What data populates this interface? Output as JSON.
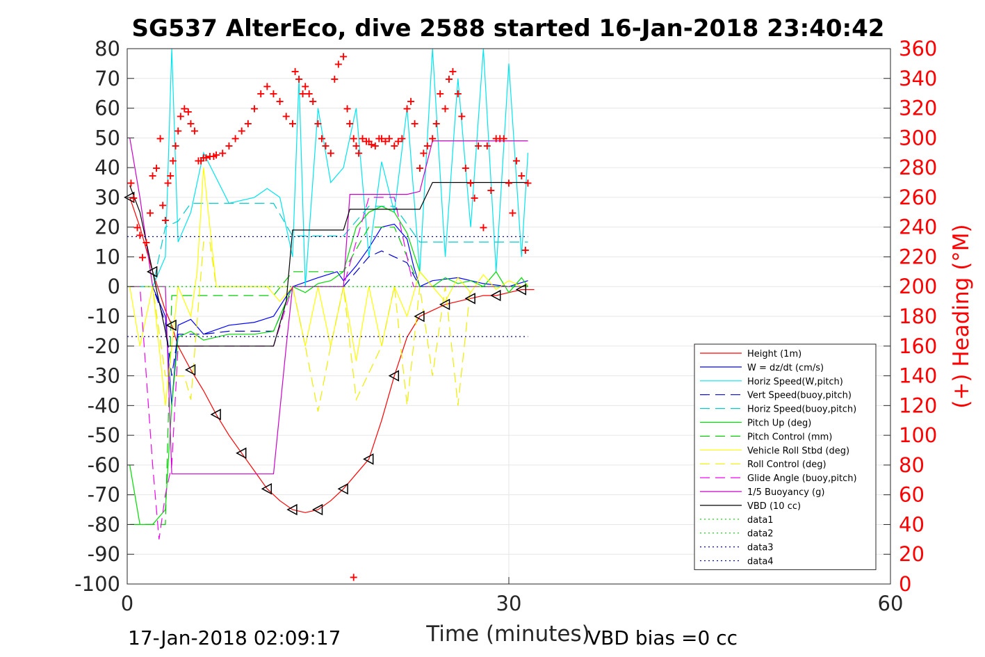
{
  "chart_data": {
    "type": "line",
    "title": "SG537 AlterEco, dive 2588 started 16-Jan-2018 23:40:42",
    "xlabel": "Time (minutes)",
    "ylabel": "",
    "ylabel_right": "(+) Heading (°M)",
    "xlim": [
      0,
      60
    ],
    "ylim": [
      -100,
      80
    ],
    "ylim_right": [
      0,
      360
    ],
    "x_ticks": [
      "0",
      "30",
      "60"
    ],
    "y_ticks": [
      "80",
      "70",
      "60",
      "50",
      "40",
      "30",
      "20",
      "10",
      "0",
      "-10",
      "-20",
      "-30",
      "-40",
      "-50",
      "-60",
      "-70",
      "-80",
      "-90",
      "-100"
    ],
    "y_ticks_right": [
      "360",
      "340",
      "320",
      "300",
      "280",
      "260",
      "240",
      "220",
      "200",
      "180",
      "160",
      "140",
      "120",
      "100",
      "80",
      "60",
      "40",
      "20",
      "0"
    ],
    "grid": true,
    "legend_position": "lower-right",
    "footer_left": "17-Jan-2018 02:09:17",
    "footer_right": "VBD bias =0 cc",
    "series": [
      {
        "name": "Height (1m)",
        "color": "#ff0000",
        "style": "solid",
        "x": [
          0.2,
          1.0,
          2.0,
          3.0,
          3.5,
          4.0,
          5.0,
          6.0,
          7.0,
          8.0,
          9.0,
          10.0,
          11.0,
          12.0,
          13.0,
          14.0,
          15.0,
          16.0,
          17.0,
          18.0,
          19.0,
          20.0,
          21.0,
          22.0,
          23.0,
          24.0,
          25.0,
          26.0,
          27.0,
          28.0,
          29.0,
          30.0,
          31.0,
          32.0
        ],
        "y": [
          30,
          20,
          5,
          -8,
          -13,
          -20,
          -28,
          -35,
          -43,
          -50,
          -56,
          -62,
          -68,
          -72,
          -75,
          -76,
          -75,
          -72,
          -68,
          -63,
          -58,
          -45,
          -30,
          -17,
          -10,
          -8,
          -6,
          -5,
          -4,
          -3,
          -3,
          -2,
          -1,
          -1
        ]
      },
      {
        "name": "W = dz/dt (cm/s)",
        "color": "#0000ff",
        "style": "solid",
        "x": [
          0.2,
          2.0,
          3.0,
          3.5,
          4.0,
          5.0,
          6.0,
          8.0,
          10.0,
          11.5,
          13.0,
          15.0,
          16.5,
          17.0,
          18.0,
          19.0,
          20.0,
          21.0,
          22.0,
          22.5,
          23.0,
          24.0,
          26.0,
          28.0,
          30.0,
          31.5
        ],
        "y": [
          0,
          0,
          -10,
          -40,
          -13,
          -11,
          -16,
          -13,
          -12,
          -10,
          0,
          3,
          5,
          2,
          7,
          13,
          20,
          21,
          16,
          7,
          0,
          2,
          3,
          1,
          0,
          2
        ]
      },
      {
        "name": "Horiz Speed(W,pitch)",
        "color": "#00e5ee",
        "style": "solid",
        "x": [
          0.2,
          2.0,
          3.0,
          3.5,
          4.0,
          4.5,
          5.0,
          6.0,
          8.0,
          10.0,
          11.0,
          12.0,
          13.0,
          13.5,
          14.0,
          15.0,
          16.0,
          17.0,
          18.0,
          19.0,
          20.0,
          21.0,
          22.0,
          23.0,
          24.0,
          25.0,
          26.0,
          27.0,
          28.0,
          29.0,
          30.0,
          31.0,
          31.5
        ],
        "y": [
          0,
          0,
          10,
          80,
          15,
          20,
          25,
          45,
          28,
          30,
          33,
          30,
          10,
          70,
          0,
          60,
          35,
          40,
          60,
          10,
          42,
          25,
          60,
          5,
          80,
          10,
          70,
          20,
          80,
          5,
          75,
          10,
          45
        ]
      },
      {
        "name": "Vert Speed(buoy,pitch)",
        "color": "#0000cc",
        "style": "dashed",
        "x": [
          0.2,
          2.0,
          3.0,
          3.5,
          4.0,
          5.0,
          6.0,
          8.0,
          10.0,
          11.5,
          13.0,
          16.5,
          17.0,
          19.0,
          20.0,
          21.0,
          22.0,
          23.0,
          26.0,
          28.0,
          30.0,
          31.5
        ],
        "y": [
          0,
          0,
          -12,
          -30,
          -16,
          -16,
          -16,
          -15,
          -15,
          -15,
          0,
          0,
          0,
          10,
          12,
          10,
          8,
          0,
          0,
          0,
          0,
          0
        ]
      },
      {
        "name": "Horiz Speed(buoy,pitch)",
        "color": "#00cccc",
        "style": "dashed",
        "x": [
          0.2,
          2.0,
          3.0,
          4.0,
          5.0,
          6.0,
          8.0,
          10.0,
          11.5,
          13.0,
          16.5,
          17.0,
          19.0,
          21.0,
          23.0,
          26.0,
          28.0,
          31.5
        ],
        "y": [
          0,
          0,
          20,
          22,
          28,
          28,
          28,
          28,
          28,
          17,
          17,
          17,
          27,
          27,
          15,
          15,
          15,
          15
        ]
      },
      {
        "name": "Pitch Up (deg)",
        "color": "#00dd00",
        "style": "solid",
        "x": [
          0.2,
          1.0,
          2.0,
          3.0,
          3.5,
          4.0,
          5.0,
          6.0,
          8.0,
          10.0,
          11.5,
          13.0,
          14.0,
          15.0,
          16.0,
          17.0,
          18.0,
          19.0,
          20.0,
          21.0,
          22.0,
          23.0,
          24.0,
          25.0,
          26.0,
          27.0,
          28.0,
          29.0,
          30.0,
          31.0,
          31.5
        ],
        "y": [
          -60,
          -80,
          -80,
          -75,
          -40,
          -17,
          -15,
          -18,
          -16,
          -16,
          -15,
          0,
          -2,
          1,
          2,
          5,
          20,
          25,
          27,
          25,
          18,
          5,
          0,
          3,
          1,
          2,
          0,
          5,
          -2,
          3,
          0
        ]
      },
      {
        "name": "Pitch Control (mm)",
        "color": "#00cc00",
        "style": "dashed",
        "x": [
          0.2,
          2.0,
          3.0,
          3.5,
          5.0,
          10.0,
          11.5,
          13.0,
          16.5,
          17.0,
          19.0,
          21.0,
          22.5,
          23.0,
          31.5
        ],
        "y": [
          -80,
          -80,
          -80,
          -3,
          -3,
          -3,
          -3,
          5,
          5,
          5,
          20,
          20,
          5,
          0,
          0
        ]
      },
      {
        "name": "Vehicle Roll Stbd (deg)",
        "color": "#ffff00",
        "style": "solid",
        "x": [
          0.2,
          1.0,
          2.0,
          3.0,
          3.5,
          4.0,
          5.0,
          5.5,
          6.0,
          7.0,
          9.0,
          11.0,
          12.0,
          13.0,
          14.0,
          15.0,
          16.0,
          17.0,
          18.0,
          19.0,
          20.0,
          21.0,
          22.0,
          23.0,
          24.0,
          25.0,
          26.0,
          27.0,
          28.0,
          29.0,
          30.0,
          31.0,
          31.5
        ],
        "y": [
          0,
          -20,
          0,
          -40,
          -20,
          0,
          -10,
          5,
          40,
          0,
          0,
          0,
          -5,
          0,
          -20,
          0,
          -20,
          0,
          -25,
          0,
          -20,
          0,
          -10,
          5,
          0,
          -5,
          3,
          -2,
          4,
          -1,
          2,
          0,
          1
        ]
      },
      {
        "name": "Roll Control (deg)",
        "color": "#eeee00",
        "style": "dashed",
        "x": [
          0.2,
          2.0,
          3.0,
          3.5,
          4.5,
          5.0,
          6.0,
          6.5,
          7.0,
          11.5,
          13.0,
          14.0,
          15.0,
          16.0,
          17.0,
          18.0,
          20.0,
          21.0,
          22.0,
          23.0,
          24.0,
          25.0,
          26.0,
          27.0,
          28.0,
          31.5
        ],
        "y": [
          0,
          0,
          -30,
          -30,
          -30,
          -38,
          15,
          15,
          0,
          0,
          0,
          -20,
          -42,
          -20,
          0,
          -38,
          -20,
          0,
          -40,
          0,
          -30,
          0,
          -40,
          0,
          0,
          0
        ]
      },
      {
        "name": "Glide Angle (buoy,pitch)",
        "color": "#ee00ee",
        "style": "dashed",
        "x": [
          0.2,
          1.0,
          2.0,
          2.5,
          3.0,
          3.5,
          4.0,
          5.0,
          8.0,
          11.5,
          13.0,
          16.5,
          17.0,
          19.0,
          21.0,
          22.5,
          23.0,
          31.5
        ],
        "y": [
          0,
          0,
          -60,
          -85,
          -70,
          -60,
          -20,
          -20,
          -20,
          -20,
          0,
          0,
          0,
          30,
          30,
          0,
          0,
          0
        ]
      },
      {
        "name": "1/5 Buoyancy (g)",
        "color": "#cc00cc",
        "style": "solid",
        "x": [
          0.2,
          1.0,
          2.0,
          3.0,
          3.5,
          4.0,
          6.0,
          9.0,
          11.0,
          11.5,
          12.5,
          13.0,
          16.5,
          17.0,
          17.5,
          22.0,
          23.0,
          24.0,
          31.5
        ],
        "y": [
          50,
          30,
          0,
          0,
          -63,
          -63,
          -63,
          -63,
          -63,
          -63,
          -20,
          0,
          0,
          0,
          31,
          31,
          32,
          49,
          49
        ]
      },
      {
        "name": "VBD (10 cc)",
        "color": "#000000",
        "style": "solid",
        "x": [
          0.2,
          1.0,
          2.0,
          2.5,
          3.0,
          3.2,
          4.0,
          6.0,
          9.0,
          11.0,
          11.5,
          12.5,
          13.0,
          16.5,
          17.0,
          17.5,
          22.0,
          23.0,
          24.0,
          31.5
        ],
        "y": [
          34,
          25,
          5,
          -5,
          -15,
          -20,
          -20,
          -20,
          -20,
          -20,
          -20,
          -5,
          19,
          19,
          19,
          26,
          26,
          26,
          35,
          35
        ]
      },
      {
        "name": "data1",
        "color": "#00cc00",
        "style": "dotted",
        "x": [
          0,
          31.5
        ],
        "y": [
          0,
          0
        ]
      },
      {
        "name": "data2",
        "color": "#00cc00",
        "style": "dotted",
        "x": [
          0,
          31.5
        ],
        "y": [
          0,
          0
        ]
      },
      {
        "name": "data3",
        "color": "#0000aa",
        "style": "dotted",
        "x": [
          0,
          31.5
        ],
        "y": [
          16.8,
          16.8
        ]
      },
      {
        "name": "data4",
        "color": "#0000aa",
        "style": "dotted",
        "x": [
          0,
          31.5
        ],
        "y": [
          -16.8,
          -16.8
        ]
      }
    ],
    "heading_markers": {
      "color": "#ff0000",
      "marker": "+",
      "axis": "right",
      "x": [
        0.3,
        0.5,
        0.8,
        1.0,
        1.2,
        1.5,
        1.8,
        2.0,
        2.3,
        2.6,
        2.8,
        3.0,
        3.2,
        3.4,
        3.6,
        3.8,
        4.0,
        4.2,
        4.5,
        4.8,
        5.0,
        5.3,
        5.6,
        5.8,
        6.0,
        6.2,
        6.5,
        6.8,
        7.0,
        7.5,
        8.0,
        8.5,
        9.0,
        9.5,
        10.0,
        10.5,
        11.0,
        11.5,
        12.0,
        12.5,
        13.0,
        13.2,
        13.5,
        13.8,
        14.0,
        14.3,
        14.6,
        15.0,
        15.3,
        15.6,
        16.0,
        16.3,
        16.6,
        17.0,
        17.3,
        17.5,
        17.8,
        18.0,
        18.2,
        18.5,
        18.8,
        19.0,
        19.2,
        19.5,
        19.8,
        20.0,
        20.3,
        20.6,
        21.0,
        21.3,
        21.6,
        22.0,
        22.3,
        22.6,
        23.0,
        23.3,
        23.6,
        24.0,
        24.3,
        24.6,
        25.0,
        25.3,
        25.6,
        26.0,
        26.3,
        26.6,
        27.0,
        27.3,
        27.6,
        28.0,
        28.3,
        28.6,
        29.0,
        29.3,
        29.6,
        30.0,
        30.3,
        30.6,
        31.0,
        31.3,
        31.5
      ],
      "y": [
        270,
        260,
        240,
        235,
        220,
        230,
        250,
        275,
        280,
        300,
        255,
        245,
        270,
        275,
        285,
        295,
        305,
        315,
        320,
        318,
        310,
        305,
        285,
        285,
        287,
        287,
        288,
        288,
        289,
        290,
        295,
        300,
        305,
        310,
        320,
        330,
        335,
        330,
        325,
        315,
        310,
        345,
        340,
        330,
        335,
        330,
        325,
        310,
        300,
        295,
        290,
        340,
        350,
        355,
        320,
        310,
        300,
        295,
        290,
        300,
        298,
        298,
        296,
        295,
        300,
        300,
        298,
        300,
        295,
        298,
        300,
        320,
        325,
        310,
        280,
        290,
        295,
        300,
        310,
        330,
        320,
        340,
        345,
        330,
        315,
        280,
        270,
        260,
        295,
        240,
        295,
        265,
        300,
        300,
        300,
        270,
        250,
        285,
        275,
        225,
        270
      ]
    },
    "outlier_marker": {
      "x": 17.8,
      "y_right": 5
    }
  }
}
